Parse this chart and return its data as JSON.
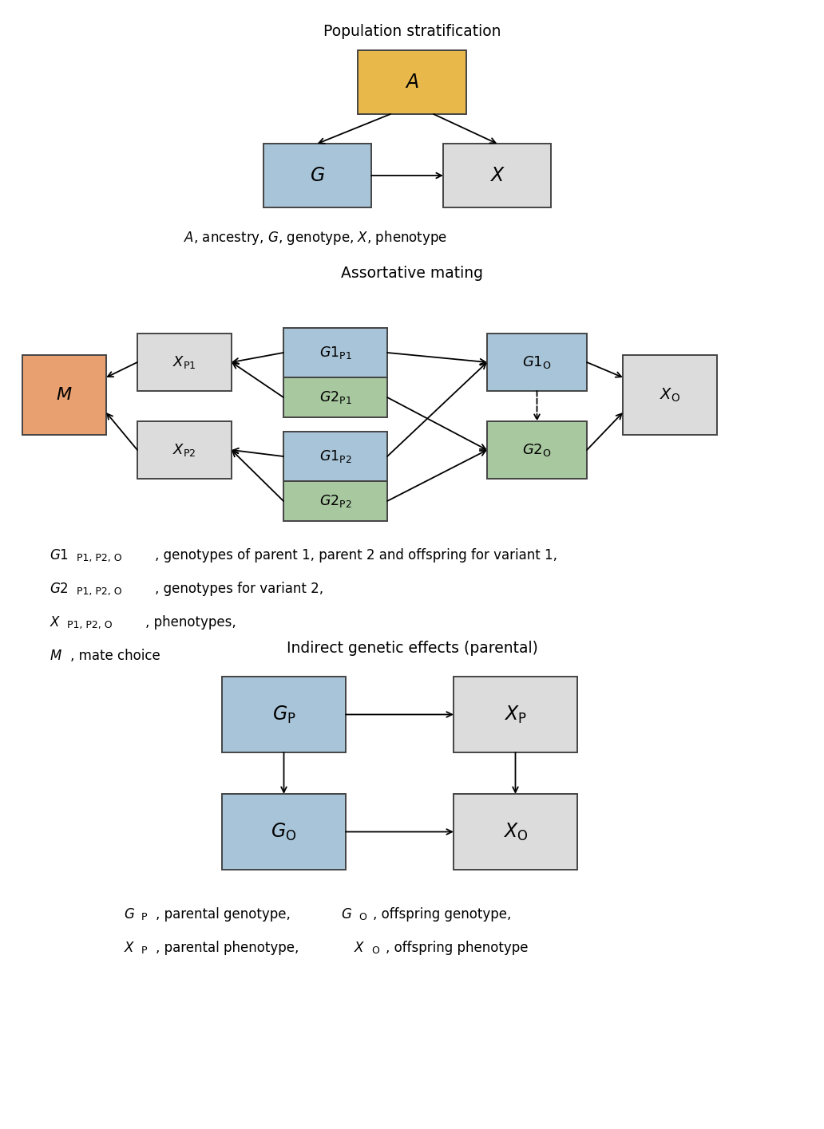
{
  "fig_width": 10.32,
  "fig_height": 14.15,
  "dpi": 100,
  "bg_color": "#ffffff",
  "colors": {
    "gold": "#E8B84B",
    "blue": "#A8C4D8",
    "gray": "#DCDCDC",
    "green": "#A8C8A0",
    "orange": "#E8A070"
  },
  "section1_title": "Population stratification",
  "section2_title": "Assortative mating",
  "section3_title": "Indirect genetic effects (parental)"
}
